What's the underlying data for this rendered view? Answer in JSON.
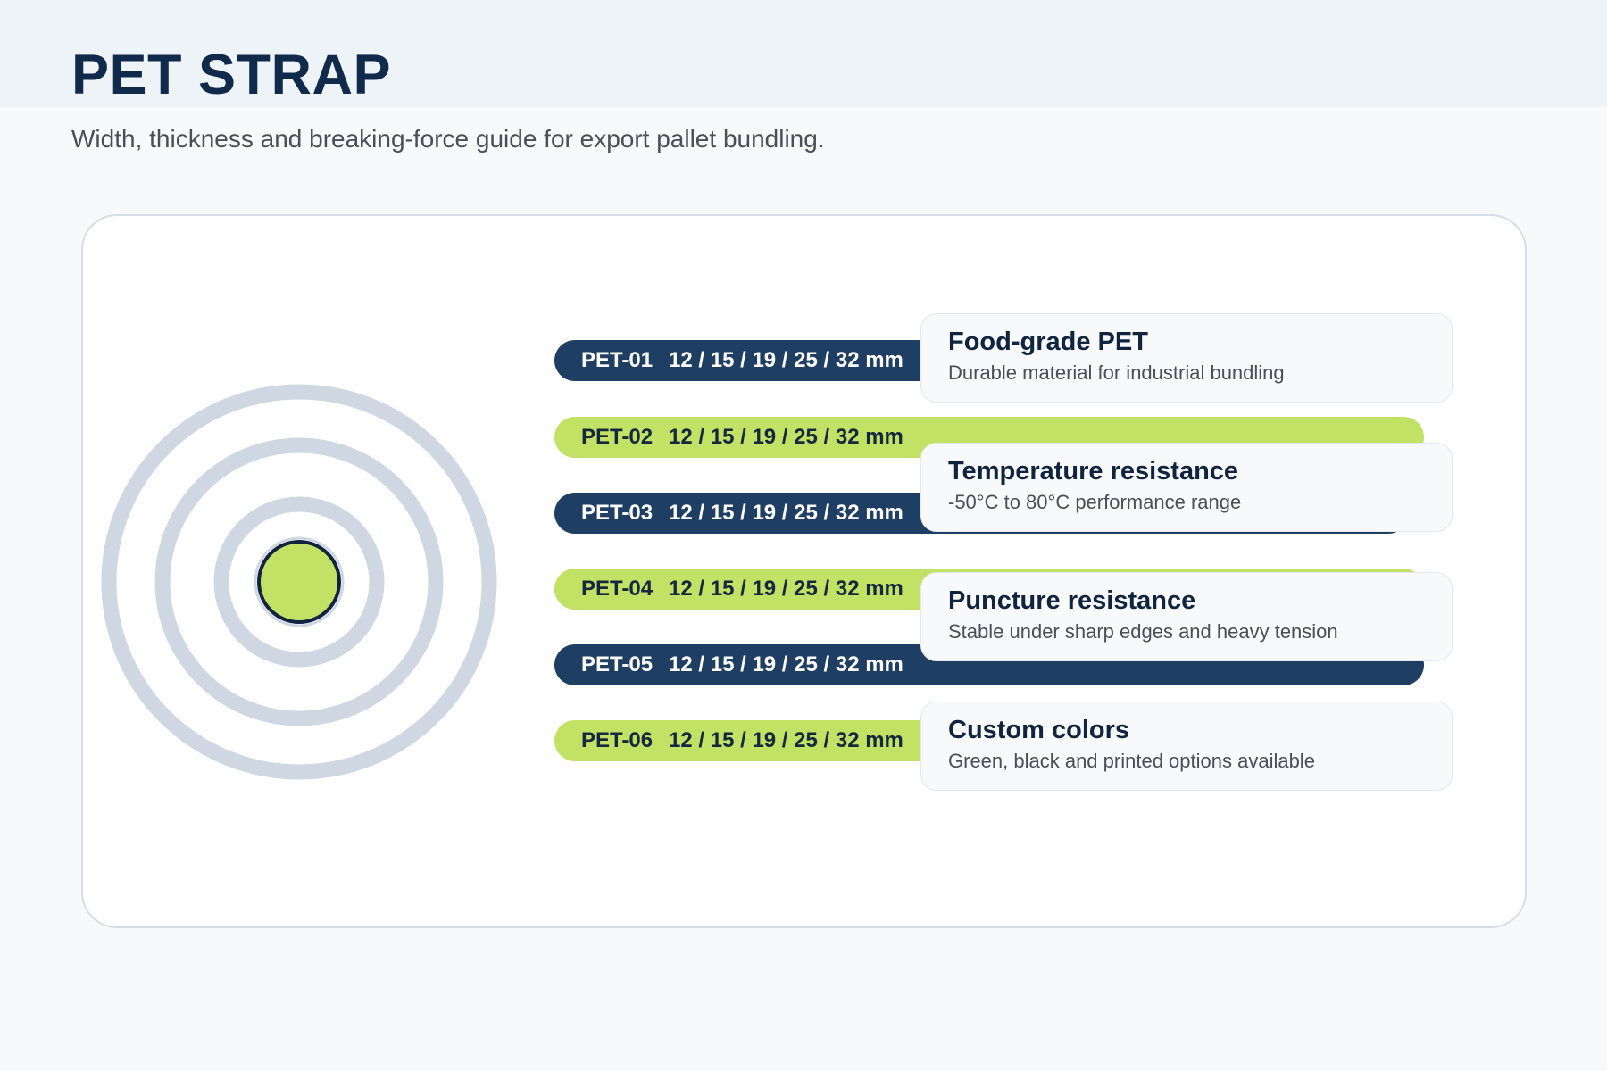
{
  "header": {
    "title": "PET STRAP",
    "subtitle": "Width, thickness and breaking-force guide for export pallet bundling."
  },
  "colors": {
    "navy": "#1e3f63",
    "lime": "#c1e264",
    "ring": "#cfd8e2",
    "title": "#102a4c"
  },
  "straps": [
    {
      "code": "PET-01",
      "widths": "12 / 15 / 19 / 25 / 32 mm",
      "style": "dark"
    },
    {
      "code": "PET-02",
      "widths": "12 / 15 / 19 / 25 / 32 mm",
      "style": "lime"
    },
    {
      "code": "PET-03",
      "widths": "12 / 15 / 19 / 25 / 32 mm",
      "style": "dark"
    },
    {
      "code": "PET-04",
      "widths": "12 / 15 / 19 / 25 / 32 mm",
      "style": "lime"
    },
    {
      "code": "PET-05",
      "widths": "12 / 15 / 19 / 25 / 32 mm",
      "style": "dark"
    },
    {
      "code": "PET-06",
      "widths": "12 / 15 / 19 / 25 / 32 mm",
      "style": "lime"
    }
  ],
  "features": [
    {
      "title": "Food-grade PET",
      "desc": "Durable material for industrial bundling"
    },
    {
      "title": "Temperature resistance",
      "desc": "-50°C to 80°C performance range"
    },
    {
      "title": "Puncture resistance",
      "desc": "Stable under sharp edges and heavy tension"
    },
    {
      "title": "Custom colors",
      "desc": "Green, black and printed options available"
    }
  ],
  "icons": {
    "coil": "strap-coil-icon"
  }
}
